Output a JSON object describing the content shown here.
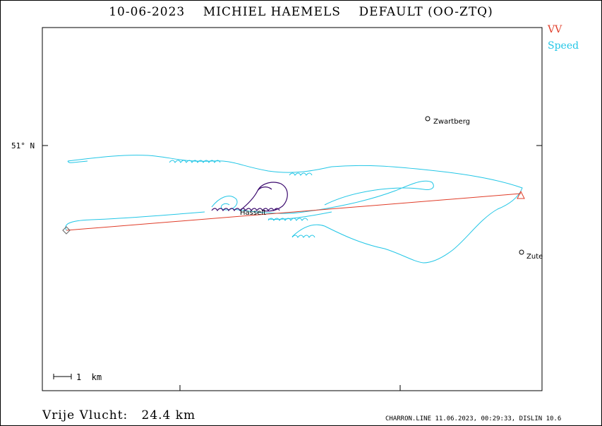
{
  "title": {
    "date": "10-06-2023",
    "pilot": "MICHIEL HAEMELS",
    "glider": "DEFAULT (OO-ZTQ)"
  },
  "legend": [
    {
      "label": "VV",
      "color": "#e03c28"
    },
    {
      "label": "Speed",
      "color": "#22c6e6"
    }
  ],
  "axis": {
    "lat_label": "51° N"
  },
  "places": [
    {
      "name": "Zwartberg"
    },
    {
      "name": "Zute"
    },
    {
      "name": "Hasselt"
    }
  ],
  "scale_bar": "1  km",
  "distance": {
    "label": "Vrije Vlucht:",
    "value": "24.4 km"
  },
  "footer": "CHARRON.LINE 11.06.2023, 00:29:33, DISLIN 10.6",
  "colors": {
    "track_speed": "#22c6e6",
    "track_start": "#3b0a6e",
    "route": "#e03c28"
  }
}
